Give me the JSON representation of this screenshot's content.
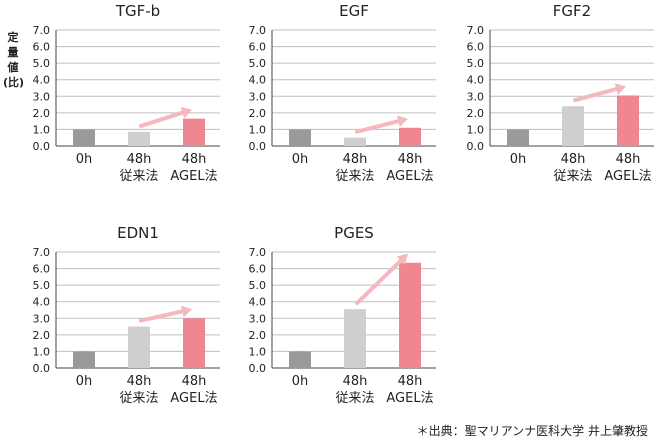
{
  "ylabel_chars": [
    "定",
    "量",
    "値",
    "(比)"
  ],
  "source_note": "＊出典：聖マリアンナ医科大学 井上肇教授",
  "colors": {
    "bar_0h": "#9a9a9a",
    "bar_conventional": "#cfcfcf",
    "bar_agel": "#ef8790",
    "arrow": "#f4b8bd",
    "grid": "#bfbfbf",
    "axis": "#444444",
    "text": "#222222"
  },
  "chart_data": [
    {
      "type": "bar",
      "title": "TGF-b",
      "categories": [
        "0h",
        "48h\n従来法",
        "48h\nAGEL法"
      ],
      "values": [
        1.0,
        0.85,
        1.65
      ],
      "ylim": [
        0,
        7
      ],
      "yticks": [
        "0.0",
        "1.0",
        "2.0",
        "3.0",
        "4.0",
        "5.0",
        "6.0",
        "7.0"
      ],
      "grid": true
    },
    {
      "type": "bar",
      "title": "EGF",
      "categories": [
        "0h",
        "48h\n従来法",
        "48h\nAGEL法"
      ],
      "values": [
        1.0,
        0.5,
        1.1
      ],
      "ylim": [
        0,
        7
      ],
      "yticks": [
        "0.0",
        "1.0",
        "2.0",
        "3.0",
        "4.0",
        "5.0",
        "6.0",
        "7.0"
      ],
      "grid": true
    },
    {
      "type": "bar",
      "title": "FGF2",
      "categories": [
        "0h",
        "48h\n従来法",
        "48h\nAGEL法"
      ],
      "values": [
        1.0,
        2.4,
        3.05
      ],
      "ylim": [
        0,
        7
      ],
      "yticks": [
        "0.0",
        "1.0",
        "2.0",
        "3.0",
        "4.0",
        "5.0",
        "6.0",
        "7.0"
      ],
      "grid": true
    },
    {
      "type": "bar",
      "title": "EDN1",
      "categories": [
        "0h",
        "48h\n従来法",
        "48h\nAGEL法"
      ],
      "values": [
        1.0,
        2.5,
        3.0
      ],
      "ylim": [
        0,
        7
      ],
      "yticks": [
        "0.0",
        "1.0",
        "2.0",
        "3.0",
        "4.0",
        "5.0",
        "6.0",
        "7.0"
      ],
      "grid": true
    },
    {
      "type": "bar",
      "title": "PGES",
      "categories": [
        "0h",
        "48h\n従来法",
        "48h\nAGEL法"
      ],
      "values": [
        1.0,
        3.55,
        6.35
      ],
      "ylim": [
        0,
        7
      ],
      "yticks": [
        "0.0",
        "1.0",
        "2.0",
        "3.0",
        "4.0",
        "5.0",
        "6.0",
        "7.0"
      ],
      "grid": true
    }
  ]
}
